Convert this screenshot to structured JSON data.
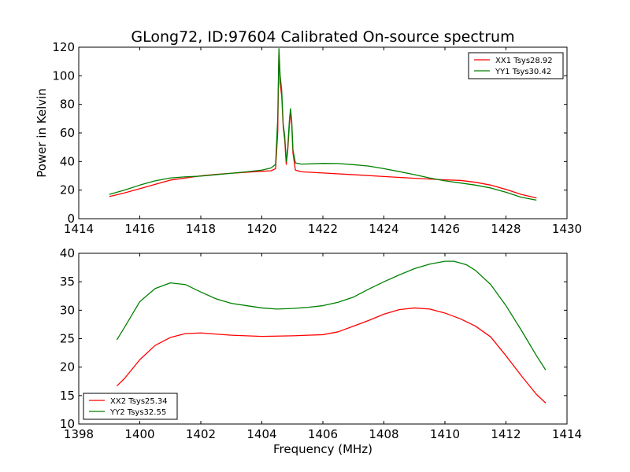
{
  "chart_data": [
    {
      "type": "line",
      "title": "GLong72, ID:97604 Calibrated On-source spectrum",
      "xlabel": "",
      "ylabel": "Power in Kelvin",
      "xlim": [
        1414,
        1430
      ],
      "ylim": [
        0,
        120
      ],
      "xticks": [
        "1414",
        "1416",
        "1418",
        "1420",
        "1422",
        "1424",
        "1426",
        "1428",
        "1430"
      ],
      "yticks": [
        "0",
        "20",
        "40",
        "60",
        "80",
        "100",
        "120"
      ],
      "legend_position": "upper right",
      "grid": false,
      "series": [
        {
          "name": "XX1 Tsys28.92",
          "color": "#ff0000",
          "points": [
            [
              1415.0,
              15.5
            ],
            [
              1415.5,
              18.0
            ],
            [
              1416.0,
              21.0
            ],
            [
              1416.5,
              24.0
            ],
            [
              1417.0,
              27.0
            ],
            [
              1417.5,
              28.5
            ],
            [
              1418.0,
              30.0
            ],
            [
              1418.5,
              31.0
            ],
            [
              1419.0,
              31.8
            ],
            [
              1419.5,
              32.5
            ],
            [
              1420.0,
              33.2
            ],
            [
              1420.3,
              33.5
            ],
            [
              1420.45,
              35.0
            ],
            [
              1420.52,
              60.0
            ],
            [
              1420.56,
              118.0
            ],
            [
              1420.6,
              95.0
            ],
            [
              1420.65,
              86.0
            ],
            [
              1420.7,
              64.0
            ],
            [
              1420.75,
              55.0
            ],
            [
              1420.8,
              38.0
            ],
            [
              1420.85,
              48.0
            ],
            [
              1420.9,
              65.0
            ],
            [
              1420.94,
              75.0
            ],
            [
              1420.98,
              66.0
            ],
            [
              1421.02,
              46.0
            ],
            [
              1421.1,
              34.0
            ],
            [
              1421.3,
              32.8
            ],
            [
              1422.0,
              32.0
            ],
            [
              1423.0,
              30.8
            ],
            [
              1424.0,
              29.5
            ],
            [
              1425.0,
              28.3
            ],
            [
              1426.0,
              27.2
            ],
            [
              1426.5,
              26.8
            ],
            [
              1427.0,
              25.5
            ],
            [
              1427.5,
              23.5
            ],
            [
              1428.0,
              20.5
            ],
            [
              1428.5,
              17.0
            ],
            [
              1429.0,
              14.5
            ]
          ]
        },
        {
          "name": "YY1 Tsys30.42",
          "color": "#008000",
          "points": [
            [
              1415.0,
              17.0
            ],
            [
              1415.5,
              20.0
            ],
            [
              1416.0,
              23.5
            ],
            [
              1416.5,
              26.5
            ],
            [
              1417.0,
              28.5
            ],
            [
              1417.5,
              29.3
            ],
            [
              1418.0,
              29.8
            ],
            [
              1418.5,
              30.8
            ],
            [
              1419.0,
              31.8
            ],
            [
              1419.5,
              32.8
            ],
            [
              1420.0,
              34.0
            ],
            [
              1420.3,
              35.5
            ],
            [
              1420.45,
              38.0
            ],
            [
              1420.52,
              70.0
            ],
            [
              1420.56,
              119.0
            ],
            [
              1420.6,
              100.0
            ],
            [
              1420.65,
              90.0
            ],
            [
              1420.7,
              66.0
            ],
            [
              1420.75,
              58.0
            ],
            [
              1420.8,
              40.0
            ],
            [
              1420.85,
              50.0
            ],
            [
              1420.9,
              68.0
            ],
            [
              1420.94,
              77.0
            ],
            [
              1420.98,
              68.0
            ],
            [
              1421.02,
              48.0
            ],
            [
              1421.1,
              39.0
            ],
            [
              1421.3,
              38.2
            ],
            [
              1422.0,
              38.7
            ],
            [
              1422.5,
              38.6
            ],
            [
              1423.0,
              37.8
            ],
            [
              1423.5,
              36.8
            ],
            [
              1424.0,
              35.0
            ],
            [
              1424.5,
              33.0
            ],
            [
              1425.0,
              30.8
            ],
            [
              1425.5,
              28.5
            ],
            [
              1426.0,
              26.5
            ],
            [
              1426.5,
              25.0
            ],
            [
              1427.0,
              23.5
            ],
            [
              1427.5,
              21.5
            ],
            [
              1428.0,
              18.5
            ],
            [
              1428.5,
              15.0
            ],
            [
              1429.0,
              13.0
            ]
          ]
        }
      ]
    },
    {
      "type": "line",
      "title": "",
      "xlabel": "Frequency (MHz)",
      "ylabel": "",
      "xlim": [
        1398,
        1414
      ],
      "ylim": [
        10,
        40
      ],
      "xticks": [
        "1398",
        "1400",
        "1402",
        "1404",
        "1406",
        "1408",
        "1410",
        "1412",
        "1414"
      ],
      "yticks": [
        "10",
        "15",
        "20",
        "25",
        "30",
        "35",
        "40"
      ],
      "legend_position": "lower left",
      "grid": false,
      "series": [
        {
          "name": "XX2 Tsys25.34",
          "color": "#ff0000",
          "points": [
            [
              1399.25,
              16.7
            ],
            [
              1399.5,
              18.0
            ],
            [
              1400.0,
              21.3
            ],
            [
              1400.5,
              23.8
            ],
            [
              1401.0,
              25.2
            ],
            [
              1401.5,
              25.9
            ],
            [
              1402.0,
              26.0
            ],
            [
              1403.0,
              25.6
            ],
            [
              1404.0,
              25.4
            ],
            [
              1405.0,
              25.5
            ],
            [
              1406.0,
              25.7
            ],
            [
              1406.5,
              26.2
            ],
            [
              1407.0,
              27.2
            ],
            [
              1407.5,
              28.2
            ],
            [
              1408.0,
              29.3
            ],
            [
              1408.5,
              30.1
            ],
            [
              1409.0,
              30.4
            ],
            [
              1409.5,
              30.2
            ],
            [
              1410.0,
              29.5
            ],
            [
              1410.5,
              28.5
            ],
            [
              1411.0,
              27.2
            ],
            [
              1411.5,
              25.3
            ],
            [
              1412.0,
              22.0
            ],
            [
              1412.5,
              18.5
            ],
            [
              1413.0,
              15.2
            ],
            [
              1413.3,
              13.7
            ]
          ]
        },
        {
          "name": "YY2 Tsys32.55",
          "color": "#008000",
          "points": [
            [
              1399.25,
              24.8
            ],
            [
              1399.5,
              27.0
            ],
            [
              1400.0,
              31.5
            ],
            [
              1400.5,
              33.8
            ],
            [
              1401.0,
              34.8
            ],
            [
              1401.5,
              34.5
            ],
            [
              1402.0,
              33.2
            ],
            [
              1402.5,
              32.0
            ],
            [
              1403.0,
              31.2
            ],
            [
              1403.5,
              30.8
            ],
            [
              1404.0,
              30.4
            ],
            [
              1404.5,
              30.2
            ],
            [
              1405.0,
              30.3
            ],
            [
              1405.5,
              30.5
            ],
            [
              1406.0,
              30.8
            ],
            [
              1406.5,
              31.4
            ],
            [
              1407.0,
              32.3
            ],
            [
              1407.5,
              33.7
            ],
            [
              1408.0,
              35.0
            ],
            [
              1408.5,
              36.2
            ],
            [
              1409.0,
              37.3
            ],
            [
              1409.5,
              38.1
            ],
            [
              1410.0,
              38.6
            ],
            [
              1410.3,
              38.6
            ],
            [
              1410.7,
              38.0
            ],
            [
              1411.0,
              37.0
            ],
            [
              1411.5,
              34.5
            ],
            [
              1412.0,
              30.8
            ],
            [
              1412.5,
              26.5
            ],
            [
              1413.0,
              22.0
            ],
            [
              1413.3,
              19.5
            ]
          ]
        }
      ]
    }
  ]
}
